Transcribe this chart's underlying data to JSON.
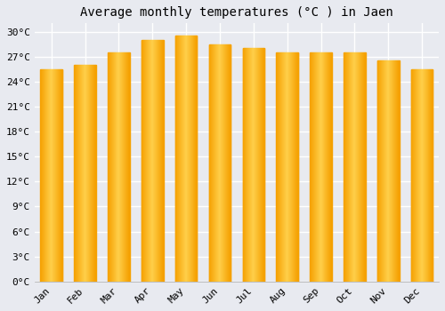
{
  "title": "Average monthly temperatures (°C ) in Jaen",
  "months": [
    "Jan",
    "Feb",
    "Mar",
    "Apr",
    "May",
    "Jun",
    "Jul",
    "Aug",
    "Sep",
    "Oct",
    "Nov",
    "Dec"
  ],
  "values": [
    25.5,
    26.0,
    27.5,
    29.0,
    29.5,
    28.5,
    28.0,
    27.5,
    27.5,
    27.5,
    26.5,
    25.5
  ],
  "bar_color_center": "#FFD04A",
  "bar_color_edge": "#F5A000",
  "background_color": "#E8EAF0",
  "plot_bg_color": "#E8EAF0",
  "grid_color": "#FFFFFF",
  "ylim": [
    0,
    31
  ],
  "yticks": [
    0,
    3,
    6,
    9,
    12,
    15,
    18,
    21,
    24,
    27,
    30
  ],
  "title_fontsize": 10,
  "tick_fontsize": 8,
  "title_font": "monospace",
  "tick_font": "monospace"
}
